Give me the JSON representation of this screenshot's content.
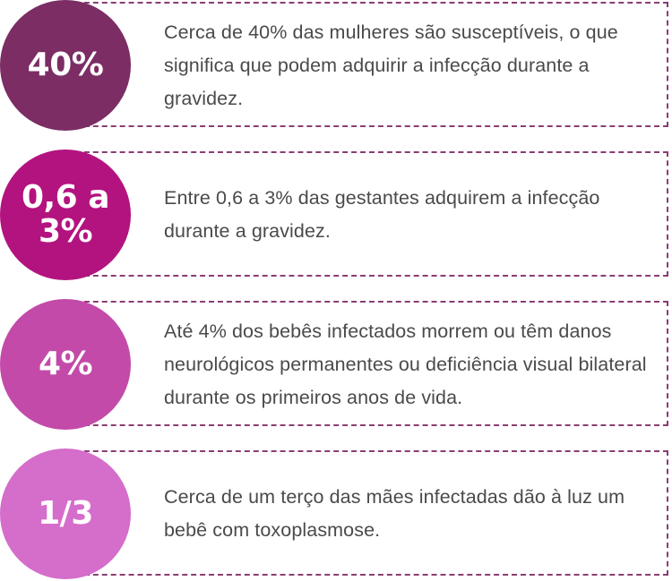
{
  "items": [
    {
      "stat": "40%",
      "description": "Cerca de 40% das mulheres são susceptíveis, o que significa que podem adquirir a infecção durante a gravidez.",
      "color": "#7b2d64"
    },
    {
      "stat": "0,6 a 3%",
      "description": "Entre 0,6 a 3% das gestantes adquirem a infecção durante a gravidez.",
      "color": "#b3137f"
    },
    {
      "stat": "4%",
      "description": "Até 4% dos bebês infectados morrem ou têm danos neurológicos permanentes ou deficiência visual bilateral durante os primeiros anos de vida.",
      "color": "#c34aa9"
    },
    {
      "stat": "1/3",
      "description": "Cerca de um terço das mães infectadas dão à luz um bebê com toxoplasmose.",
      "color": "#d56dcb"
    }
  ],
  "border_color": "#8a3d72",
  "text_color": "#4a4a4a"
}
